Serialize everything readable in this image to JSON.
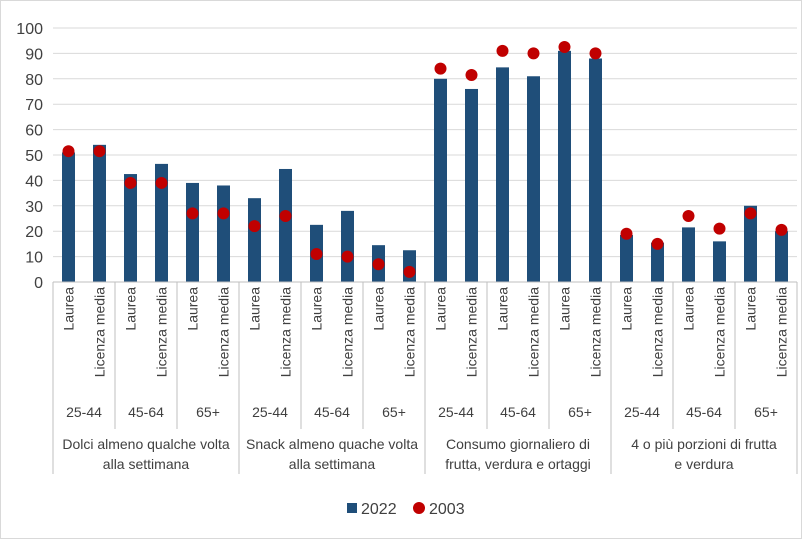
{
  "chart_data": {
    "type": "bar",
    "title": "",
    "xlabel": "",
    "ylabel": "",
    "ylim": [
      0,
      100
    ],
    "yticks": [
      0,
      10,
      20,
      30,
      40,
      50,
      60,
      70,
      80,
      90,
      100
    ],
    "grid": true,
    "legend_position": "bottom",
    "colors": {
      "bar": "#1f4e79",
      "dot": "#c00000",
      "grid": "#d9d9d9",
      "axis": "#bfbfbf"
    },
    "education_labels": [
      "Laurea",
      "Licenza media"
    ],
    "categories": [
      {
        "label": "Dolci almeno qualche volta alla settimana",
        "label_lines": [
          "Dolci almeno qualche volta",
          "alla settimana"
        ],
        "age_groups": [
          {
            "label": "25-44",
            "values_2022": [
              51,
              54
            ],
            "values_2003": [
              51.5,
              51.5
            ]
          },
          {
            "label": "45-64",
            "values_2022": [
              42.5,
              46.5
            ],
            "values_2003": [
              39,
              39
            ]
          },
          {
            "label": "65+",
            "values_2022": [
              39,
              38
            ],
            "values_2003": [
              27,
              27
            ]
          }
        ]
      },
      {
        "label": "Snack almeno quache volta alla settimana",
        "label_lines": [
          "Snack almeno quache volta",
          "alla settimana"
        ],
        "age_groups": [
          {
            "label": "25-44",
            "values_2022": [
              33,
              44.5
            ],
            "values_2003": [
              22,
              26
            ]
          },
          {
            "label": "45-64",
            "values_2022": [
              22.5,
              28
            ],
            "values_2003": [
              11,
              10
            ]
          },
          {
            "label": "65+",
            "values_2022": [
              14.5,
              12.5
            ],
            "values_2003": [
              7,
              4
            ]
          }
        ]
      },
      {
        "label": "Consumo giornaliero di frutta, verdura e ortaggi",
        "label_lines": [
          "Consumo giornaliero di",
          "frutta, verdura e ortaggi"
        ],
        "age_groups": [
          {
            "label": "25-44",
            "values_2022": [
              80,
              76
            ],
            "values_2003": [
              84,
              81.5
            ]
          },
          {
            "label": "45-64",
            "values_2022": [
              84.5,
              81
            ],
            "values_2003": [
              91,
              90
            ]
          },
          {
            "label": "65+",
            "values_2022": [
              91,
              88
            ],
            "values_2003": [
              92.5,
              90
            ]
          }
        ]
      },
      {
        "label": "4 o più porzioni di frutta e verdura",
        "label_lines": [
          "4 o più porzioni di frutta",
          "e verdura"
        ],
        "age_groups": [
          {
            "label": "25-44",
            "values_2022": [
              18.5,
              15.5
            ],
            "values_2003": [
              19,
              15
            ]
          },
          {
            "label": "45-64",
            "values_2022": [
              21.5,
              16
            ],
            "values_2003": [
              26,
              21
            ]
          },
          {
            "label": "65+",
            "values_2022": [
              30,
              20
            ],
            "values_2003": [
              27,
              20.5
            ]
          }
        ]
      }
    ],
    "series": [
      {
        "name": "2022",
        "marker": "bar"
      },
      {
        "name": "2003",
        "marker": "dot"
      }
    ]
  }
}
